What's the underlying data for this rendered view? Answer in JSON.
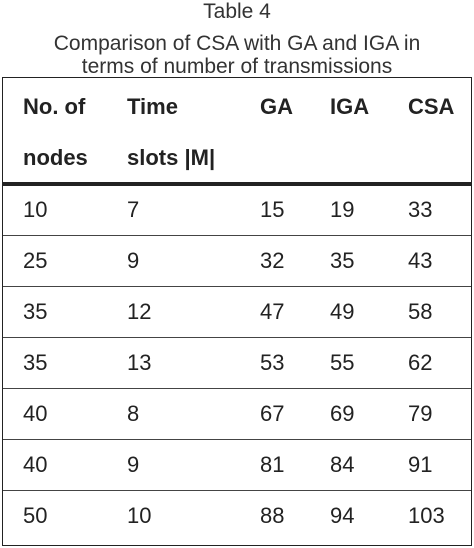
{
  "caption": {
    "label": "Table 4",
    "title_line1": "Comparison of CSA with GA and IGA in",
    "title_line2": "terms of number of transmissions"
  },
  "table": {
    "headers": [
      {
        "line1": "No. of",
        "line2": "nodes"
      },
      {
        "line1": "Time",
        "line2": "slots |M|"
      },
      {
        "line1": "GA",
        "line2": ""
      },
      {
        "line1": "IGA",
        "line2": ""
      },
      {
        "line1": "CSA",
        "line2": ""
      }
    ],
    "rows": [
      [
        "10",
        "7",
        "15",
        "19",
        "33"
      ],
      [
        "25",
        "9",
        "32",
        "35",
        "43"
      ],
      [
        "35",
        "12",
        "47",
        "49",
        "58"
      ],
      [
        "35",
        "13",
        "53",
        "55",
        "62"
      ],
      [
        "40",
        "8",
        "67",
        "69",
        "79"
      ],
      [
        "40",
        "9",
        "81",
        "84",
        "91"
      ],
      [
        "50",
        "10",
        "88",
        "94",
        "103"
      ]
    ]
  }
}
